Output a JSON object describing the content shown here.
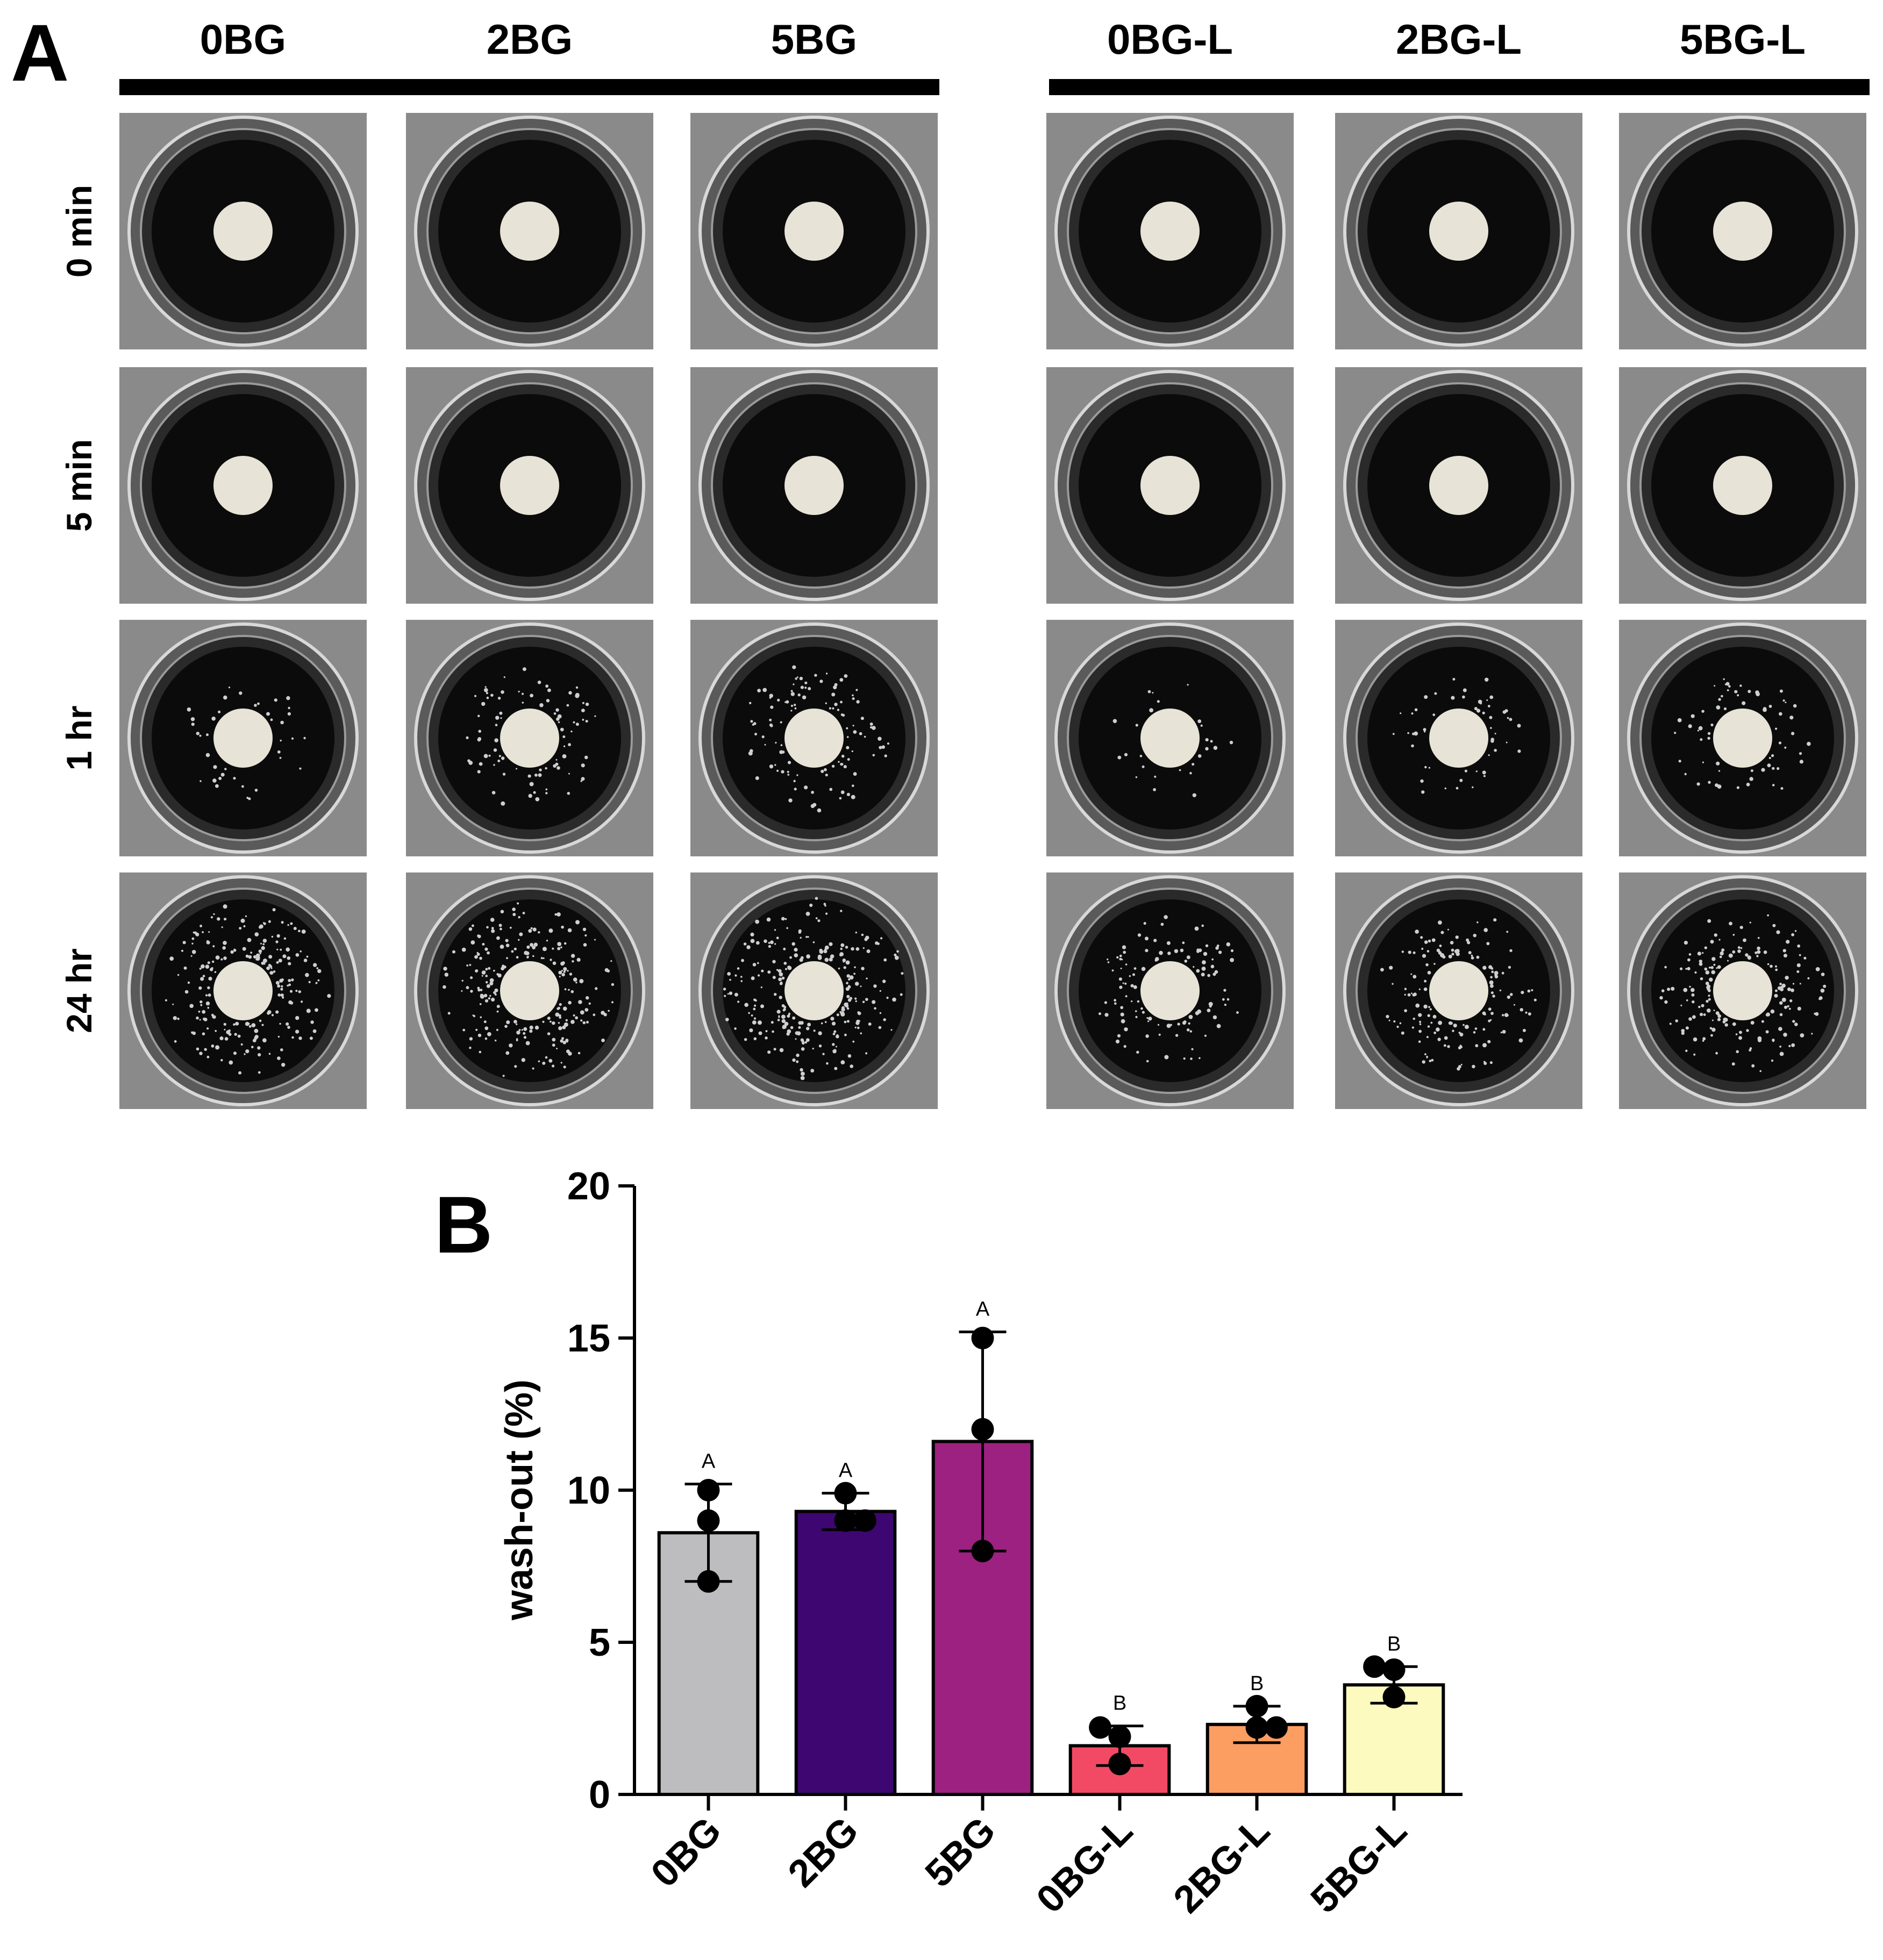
{
  "panel_a": {
    "letter": "A",
    "groups": [
      "0BG",
      "2BG",
      "5BG",
      "0BG-L",
      "2BG-L",
      "5BG-L"
    ],
    "timepoints": [
      "0 min",
      "5 min",
      "1 hr",
      "24 hr"
    ],
    "debris_level": [
      [
        0,
        0,
        0,
        0,
        0,
        0
      ],
      [
        0,
        0,
        0,
        0,
        0,
        0
      ],
      [
        0.15,
        0.35,
        0.45,
        0.1,
        0.2,
        0.25
      ],
      [
        0.85,
        0.9,
        1.0,
        0.45,
        0.6,
        0.7
      ]
    ],
    "colors": {
      "image_frame": "#8a8a8a",
      "well": "#0b0b0b",
      "disc": "#e7e3d6",
      "debris": "#cfcfcf"
    }
  },
  "panel_b": {
    "letter": "B"
  },
  "chart_data": {
    "type": "bar",
    "categories": [
      "0BG",
      "2BG",
      "5BG",
      "0BG-L",
      "2BG-L",
      "5BG-L"
    ],
    "values": [
      8.6,
      9.3,
      11.6,
      1.6,
      2.3,
      3.6
    ],
    "error": [
      1.6,
      0.6,
      3.6,
      0.65,
      0.6,
      0.6
    ],
    "points": [
      [
        10.0,
        9.0,
        7.0
      ],
      [
        9.9,
        9.0,
        9.0
      ],
      [
        15.0,
        12.0,
        8.0
      ],
      [
        2.2,
        1.9,
        1.0
      ],
      [
        2.9,
        2.2,
        2.2
      ],
      [
        4.2,
        4.1,
        3.2
      ]
    ],
    "significance": [
      "A",
      "A",
      "A",
      "B",
      "B",
      "B"
    ],
    "xlabel": "",
    "ylabel": "wash-out (%)",
    "ylim": [
      0,
      20
    ],
    "yticks": [
      0,
      5,
      10,
      15,
      20
    ],
    "grid": false,
    "colors": [
      "#bdbdbf",
      "#3d0671",
      "#9c2180",
      "#f24a65",
      "#fc9d62",
      "#fcfabe"
    ]
  }
}
